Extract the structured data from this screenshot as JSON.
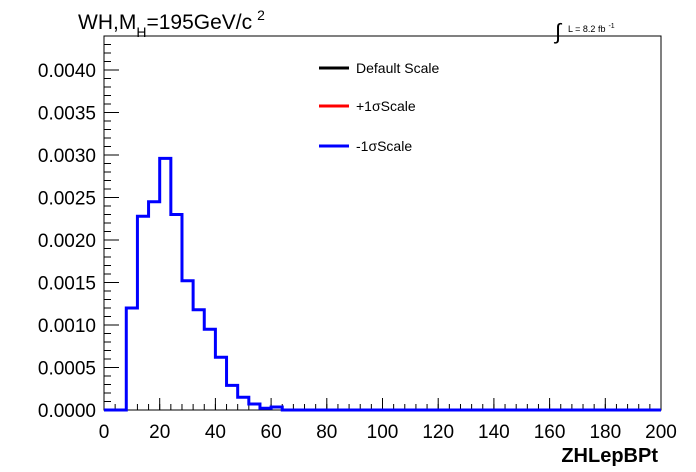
{
  "title": {
    "part1": "WH,M",
    "sub": "H",
    "part2": "=195GeV/c",
    "sup": "2"
  },
  "luminosity": {
    "integral": "∫",
    "text": "L = 8.2 fb",
    "sup": "-1"
  },
  "legend": [
    {
      "label": "Default Scale",
      "color": "#000000"
    },
    {
      "label": "+1σScale",
      "color": "#ff0000"
    },
    {
      "label": "-1σScale",
      "color": "#0000ff"
    }
  ],
  "chart_data": {
    "type": "line",
    "style": "step-histogram",
    "xlabel": "ZHLepBPt",
    "ylabel": "",
    "xlim": [
      0,
      200
    ],
    "ylim": [
      0,
      0.0044
    ],
    "x_ticks": [
      0,
      20,
      40,
      60,
      80,
      100,
      120,
      140,
      160,
      180,
      200
    ],
    "x_tick_labels": [
      "0",
      "20",
      "40",
      "60",
      "80",
      "100",
      "120",
      "140",
      "160",
      "180",
      "200"
    ],
    "y_ticks": [
      0,
      0.0005,
      0.001,
      0.0015,
      0.002,
      0.0025,
      0.003,
      0.0035,
      0.004
    ],
    "y_tick_labels": [
      "0.0000",
      "0.0005",
      "0.0010",
      "0.0015",
      "0.0020",
      "0.0025",
      "0.0030",
      "0.0035",
      "0.0040"
    ],
    "bin_width": 4,
    "bin_edges_start": 0,
    "series": [
      {
        "name": "-1σScale",
        "color": "#0000ff",
        "values": [
          0,
          0,
          0.0012,
          0.00228,
          0.00245,
          0.00296,
          0.0023,
          0.00152,
          0.00118,
          0.00095,
          0.00062,
          0.00029,
          0.00015,
          7e-05,
          2e-05,
          3.5e-05,
          0,
          0,
          0,
          0,
          0,
          0,
          0,
          0,
          0,
          0,
          0,
          0,
          0,
          0,
          0,
          0,
          0,
          0,
          0,
          0,
          0,
          0,
          0,
          0,
          0,
          0,
          0,
          0,
          0,
          0,
          0,
          0,
          0,
          0
        ]
      }
    ]
  }
}
